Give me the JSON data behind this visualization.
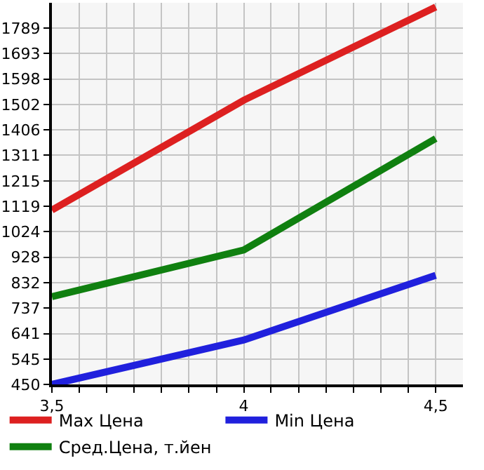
{
  "chart_data": {
    "type": "line",
    "x": [
      3.5,
      4,
      4.5
    ],
    "series": [
      {
        "name": "Max Цена",
        "color": "#dd2020",
        "values": [
          1105,
          1518,
          1868
        ]
      },
      {
        "name": "Min Цена",
        "color": "#2020dd",
        "values": [
          450,
          617,
          860
        ]
      },
      {
        "name": "Сред.Цена, т.йен",
        "color": "#108010",
        "values": [
          780,
          955,
          1374
        ]
      }
    ],
    "xlim": [
      3.5,
      4.571
    ],
    "xticks": [
      {
        "value": 3.5,
        "label": "3,5"
      },
      {
        "value": 3.571,
        "label": null
      },
      {
        "value": 3.643,
        "label": null
      },
      {
        "value": 3.714,
        "label": null
      },
      {
        "value": 3.786,
        "label": null
      },
      {
        "value": 3.857,
        "label": null
      },
      {
        "value": 3.929,
        "label": null
      },
      4,
      {
        "value": 4.071,
        "label": null
      },
      {
        "value": 4.143,
        "label": null
      },
      {
        "value": 4.214,
        "label": null
      },
      {
        "value": 4.286,
        "label": null
      },
      {
        "value": 4.357,
        "label": null
      },
      {
        "value": 4.429,
        "label": null
      },
      {
        "value": 4.5,
        "label": "4,5"
      }
    ],
    "ylim": [
      450,
      1884
    ],
    "yticks": [
      450,
      545,
      641,
      737,
      832,
      928,
      1024,
      1119,
      1215,
      1311,
      1406,
      1502,
      1598,
      1693,
      1789
    ],
    "grid": true,
    "legend": "bottom",
    "marker": "none",
    "line_style": "solid"
  }
}
